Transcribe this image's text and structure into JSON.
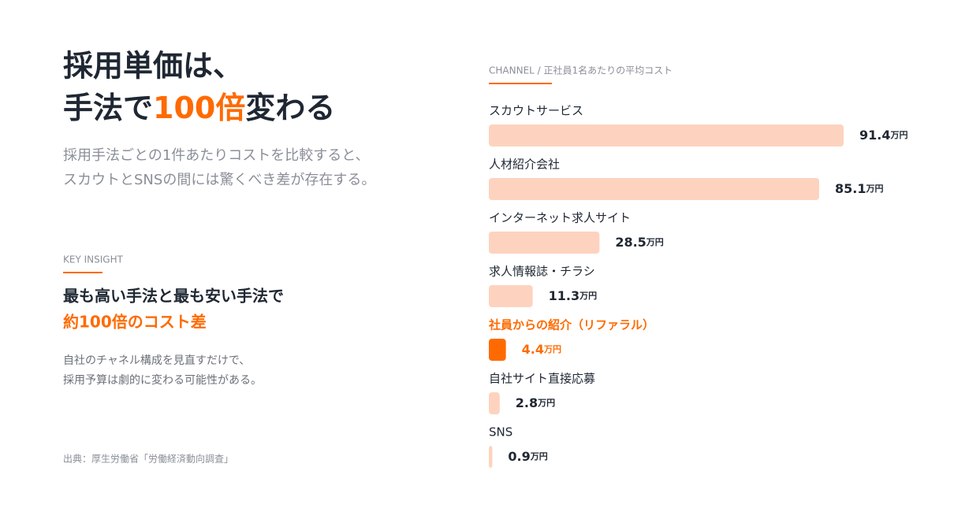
{
  "headline": {
    "line1": "採用単価は、",
    "line2": [
      "手法で",
      "100倍",
      "変わる"
    ]
  },
  "lead": [
    "採用手法ごとの1件あたりコストを比較すると、",
    "スカウトとSNSの間には驚くべき差が存在する。"
  ],
  "insight": {
    "label": "KEY INSIGHT",
    "heading": "最も高い手法と最も安い手法で",
    "highlight": "約100倍のコスト差",
    "body": [
      "自社のチャネル構成を見直すだけで、",
      "採用予算は劇的に変わる可能性がある。"
    ]
  },
  "source": "出典：厚生労働省「労働経済動向調査」",
  "chart_data": {
    "type": "bar",
    "orientation": "horizontal",
    "title": "CHANNEL / 正社員1名あたりの平均コスト",
    "categories": [
      "スカウトサービス",
      "人材紹介会社",
      "インターネット求人サイト",
      "求人情報誌・チラシ",
      "社員からの紹介（リファラル）",
      "自社サイト直接応募",
      "SNS"
    ],
    "values": [
      91.4,
      85.1,
      28.5,
      11.3,
      4.4,
      2.8,
      0.9
    ],
    "unit": "万円",
    "color": "#fdd3bf",
    "highlight_color": "#ff6a00",
    "highlight_index": 4
  }
}
